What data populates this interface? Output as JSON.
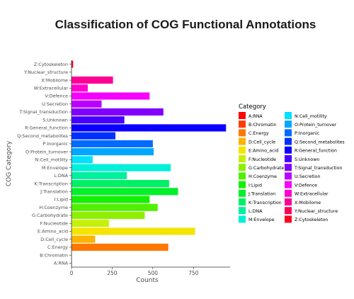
{
  "chart_data": {
    "type": "bar",
    "orientation": "horizontal",
    "title": "Classification of COG Functional Annotations",
    "xlabel": "Counts",
    "ylabel": "COG Category",
    "xlim": [
      0,
      975
    ],
    "xticks": [
      "0",
      "250",
      "500",
      "750"
    ],
    "xtick_values": [
      0,
      250,
      500,
      750
    ],
    "grid": false,
    "legend_position": "right",
    "legend_title": "Category",
    "categories": [
      "A:RNA",
      "B:Chromatin",
      "C:Energy",
      "D:Cell_cycle",
      "E:Amino_acid",
      "F:Nucleotide",
      "G:Carbohydrate",
      "H:Coenzyme",
      "I:Lipid",
      "J:Translation",
      "K:Transcription",
      "L:DNA",
      "M:Envelope",
      "N:Cell_motility",
      "O:Protein_turnover",
      "P:Inorganic",
      "Q:Second_metabolites",
      "R:General_function",
      "S:Unknown",
      "T:Signal_transduction",
      "U:Secretion",
      "V:Defence",
      "W:Extracellular",
      "X:Mobilome",
      "Y:Nuclear_structure",
      "Z:Cytoskeleton"
    ],
    "values": [
      2,
      2,
      595,
      145,
      760,
      230,
      450,
      530,
      480,
      655,
      600,
      340,
      610,
      130,
      505,
      500,
      270,
      950,
      325,
      565,
      185,
      480,
      100,
      255,
      0,
      10
    ],
    "colors": [
      "#FF0000",
      "#FF3B00",
      "#FF7700",
      "#FFB200",
      "#F5E400",
      "#C5F00A",
      "#8EF000",
      "#50F000",
      "#14F000",
      "#00F02A",
      "#00F065",
      "#00F09F",
      "#00F0DA",
      "#00E0FF",
      "#00A6FF",
      "#006BFF",
      "#0030FF",
      "#0A00FF",
      "#4500FF",
      "#8000FF",
      "#BA00FF",
      "#F500FF",
      "#FF00CF",
      "#FF0094",
      "#FF0059",
      "#FF001E"
    ]
  }
}
